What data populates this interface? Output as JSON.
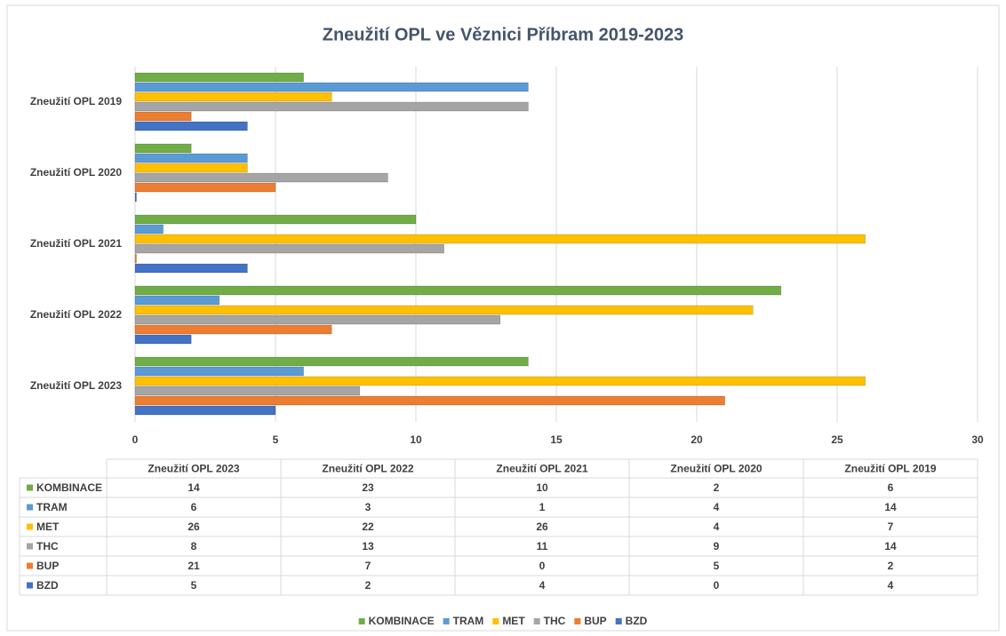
{
  "chart_data": {
    "type": "hbar",
    "title": "Zneužití OPL ve Věznici Příbram 2019-2023",
    "categories": [
      "Zneužití OPL 2023",
      "Zneužití OPL 2022",
      "Zneužití OPL 2021",
      "Zneužití OPL 2020",
      "Zneužití OPL 2019"
    ],
    "series": [
      {
        "name": "KOMBINACE",
        "color": "#70ad47",
        "values": [
          14,
          23,
          10,
          2,
          6
        ]
      },
      {
        "name": "TRAM",
        "color": "#5b9bd5",
        "values": [
          6,
          3,
          1,
          4,
          14
        ]
      },
      {
        "name": "MET",
        "color": "#ffc000",
        "values": [
          26,
          22,
          26,
          4,
          7
        ]
      },
      {
        "name": "THC",
        "color": "#a5a5a5",
        "values": [
          8,
          13,
          11,
          9,
          14
        ]
      },
      {
        "name": "BUP",
        "color": "#ed7d31",
        "values": [
          21,
          7,
          0,
          5,
          2
        ]
      },
      {
        "name": "BZD",
        "color": "#4472c4",
        "values": [
          5,
          2,
          4,
          0,
          4
        ]
      }
    ],
    "xlim": [
      0,
      30
    ],
    "xticks": [
      0,
      5,
      10,
      15,
      20,
      25,
      30
    ],
    "grid": true,
    "legend": "bottom",
    "data_table": true
  }
}
